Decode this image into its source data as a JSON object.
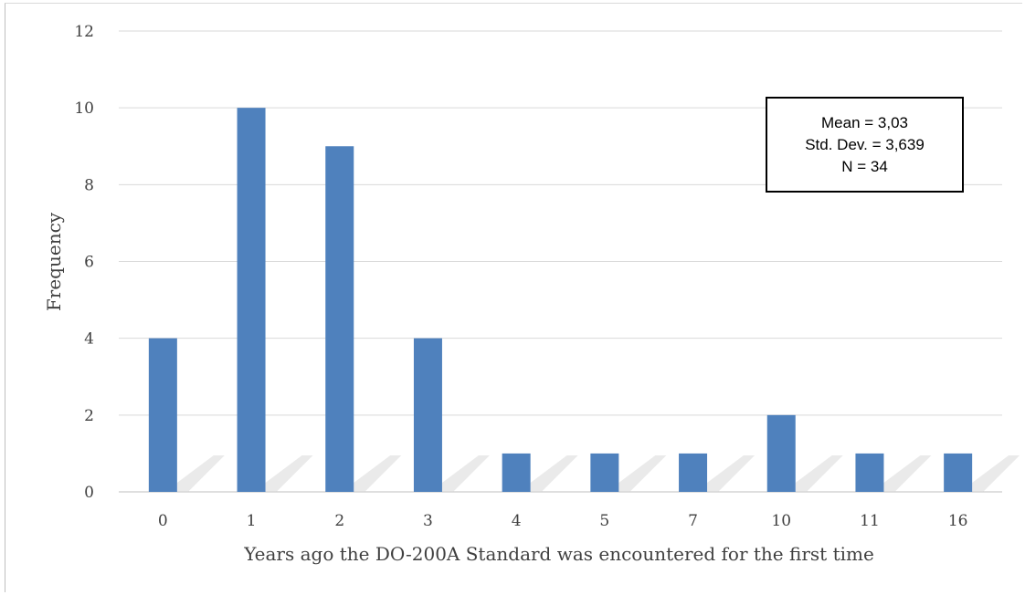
{
  "chart_data": {
    "type": "bar",
    "categories": [
      "0",
      "1",
      "2",
      "3",
      "4",
      "5",
      "7",
      "10",
      "11",
      "16"
    ],
    "values": [
      4,
      10,
      9,
      4,
      1,
      1,
      1,
      2,
      1,
      1
    ],
    "title": "",
    "xlabel": "Years ago the DO-200A Standard was encountered for the first time",
    "ylabel": "Frequency",
    "ylim": [
      0,
      12
    ],
    "yticks": [
      0,
      2,
      4,
      6,
      8,
      10,
      12
    ],
    "grid": true,
    "bar_color": "#4f81bd",
    "grid_color": "#d9d9d9"
  },
  "stats": {
    "mean": "Mean = 3,03",
    "std_dev": "Std. Dev. = 3,639",
    "n": "N = 34"
  }
}
